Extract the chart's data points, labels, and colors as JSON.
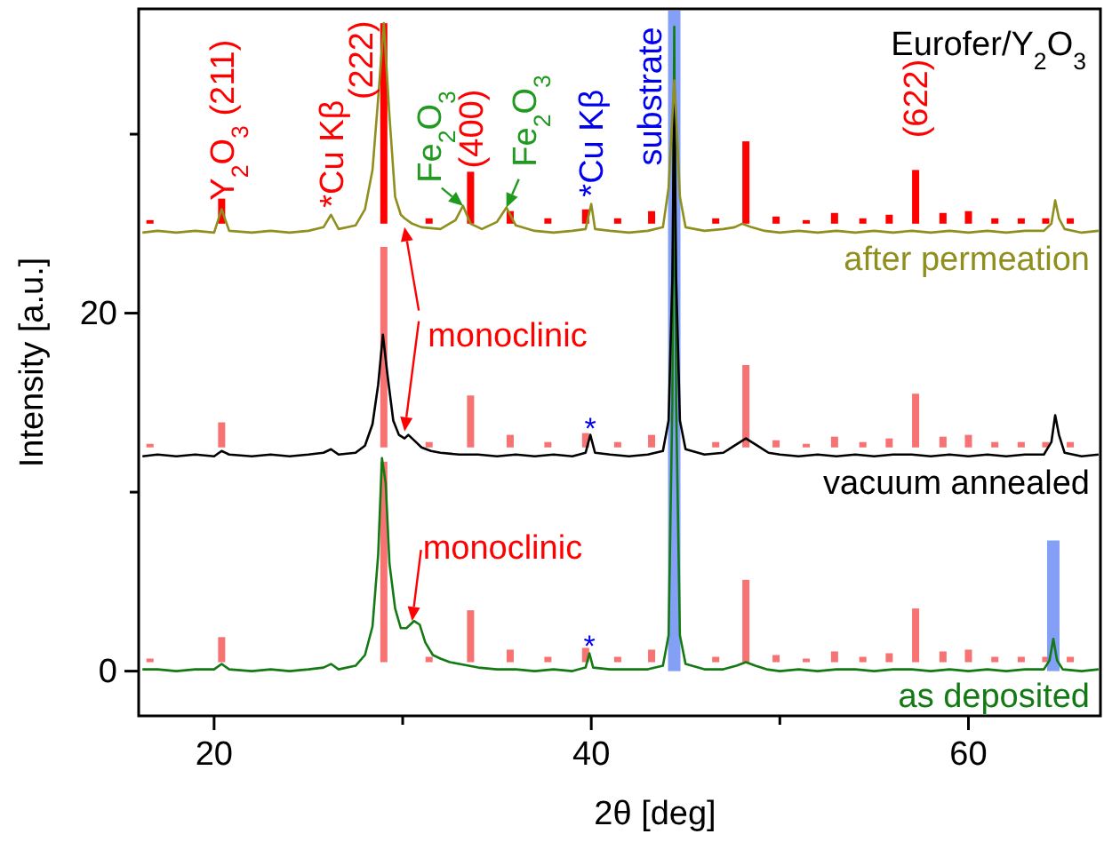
{
  "chart_data": {
    "type": "line",
    "xlabel": "2θ [deg]",
    "ylabel": "Intensity [a.u.]",
    "xlim": [
      16,
      67
    ],
    "xticks": [
      20,
      {
        "value": 30,
        "label": null
      },
      40,
      {
        "value": 50,
        "label": null
      },
      60
    ],
    "ylim": [
      -2.5,
      37
    ],
    "yticks": [
      0,
      {
        "value": 10,
        "label": null
      },
      20,
      {
        "value": 30,
        "label": null
      }
    ],
    "grid": false,
    "legend": false,
    "annotations": [
      "Eurofer/Y$_{2}$O$_{3}$",
      {
        "text": "Y$_{2}$O$_{3}$ (211)",
        "x": 20.4,
        "y": 25.8
      },
      {
        "text": "*Cu Kβ",
        "x": 26.2,
        "y": 25.5
      },
      {
        "text": "(222)",
        "x": 29.0,
        "y": 36.2
      },
      {
        "text": "Fe$_{2}$O$_{3}$",
        "x": 33.2,
        "y": 26.0
      },
      {
        "text": "(400)",
        "x": 33.6,
        "y": 27.9
      },
      {
        "text": "Fe$_{2}$O$_{3}$",
        "x": 35.5,
        "y": 25.9
      },
      {
        "text": "*Cu Kβ",
        "x": 40.0,
        "y": 26.1
      },
      {
        "text": "substrate",
        "x": 44.4,
        "y": 33.0
      },
      {
        "text": "(622)",
        "x": 57.2,
        "y": 28.0
      },
      {
        "text": "monoclinic",
        "x": 30.1,
        "y": 13.0
      },
      {
        "text": "monoclinic",
        "x": 30.5,
        "y": 2.8
      },
      {
        "text": "*",
        "x": 39.95,
        "y": 13.2
      },
      {
        "text": "*",
        "x": 39.9,
        "y": 1.0
      }
    ],
    "series": [
      {
        "type": "bar",
        "color": "#f77272",
        "base": [
          0.5,
          0.5,
          0.5,
          0.5,
          0.5,
          0.5,
          0.5,
          0.5,
          0.5,
          0.5,
          0.5,
          0.5,
          0.5,
          0.5,
          0.5,
          0.5,
          0.5,
          0.5,
          0.5,
          0.5,
          0.5,
          0.5,
          0.5,
          0.5
        ],
        "x": [
          16.6,
          20.4,
          29.0,
          31.4,
          33.6,
          35.7,
          37.7,
          39.7,
          41.4,
          43.2,
          46.6,
          48.2,
          49.8,
          51.4,
          52.9,
          54.4,
          55.8,
          57.2,
          58.65,
          60.0,
          61.4,
          62.8,
          64.1,
          65.4
        ],
        "values": [
          0.2,
          1.4,
          11.2,
          0.3,
          2.9,
          0.7,
          0.3,
          0.8,
          0.3,
          0.7,
          0.3,
          4.6,
          0.4,
          0.2,
          0.6,
          0.3,
          0.5,
          3.0,
          0.6,
          0.7,
          0.3,
          0.3,
          0.3,
          0.3
        ]
      },
      {
        "type": "bar",
        "color": "#f77272",
        "base": [
          12.5,
          12.5,
          12.5,
          12.5,
          12.5,
          12.5,
          12.5,
          12.5,
          12.5,
          12.5,
          12.5,
          12.5,
          12.5,
          12.5,
          12.5,
          12.5,
          12.5,
          12.5,
          12.5,
          12.5,
          12.5,
          12.5,
          12.5,
          12.5
        ],
        "x": [
          16.6,
          20.4,
          29.0,
          31.4,
          33.6,
          35.7,
          37.7,
          39.7,
          41.4,
          43.2,
          46.6,
          48.2,
          49.8,
          51.4,
          52.9,
          54.4,
          55.8,
          57.2,
          58.65,
          60.0,
          61.4,
          62.8,
          64.1,
          65.4
        ],
        "values": [
          0.2,
          1.4,
          11.2,
          0.3,
          2.9,
          0.7,
          0.3,
          0.8,
          0.3,
          0.7,
          0.3,
          4.6,
          0.4,
          0.2,
          0.6,
          0.3,
          0.5,
          3.0,
          0.6,
          0.7,
          0.3,
          0.3,
          0.3,
          0.3
        ]
      },
      {
        "type": "bar",
        "color": "#ff0000",
        "base": [
          25.0,
          25.0,
          25.0,
          25.0,
          25.0,
          25.0,
          25.0,
          25.0,
          25.0,
          25.0,
          25.0,
          25.0,
          25.0,
          25.0,
          25.0,
          25.0,
          25.0,
          25.0,
          25.0,
          25.0,
          25.0,
          25.0,
          25.0,
          25.0
        ],
        "x": [
          16.6,
          20.4,
          29.0,
          31.4,
          33.6,
          35.7,
          37.7,
          39.7,
          41.4,
          43.2,
          46.6,
          48.2,
          49.8,
          51.4,
          52.9,
          54.4,
          55.8,
          57.2,
          58.65,
          60.0,
          61.4,
          62.8,
          64.1,
          65.4
        ],
        "values": [
          0.2,
          1.4,
          11.2,
          0.3,
          2.9,
          0.7,
          0.3,
          0.8,
          0.3,
          0.7,
          0.3,
          4.6,
          0.4,
          0.2,
          0.6,
          0.3,
          0.5,
          3.0,
          0.6,
          0.7,
          0.3,
          0.3,
          0.3,
          0.3
        ]
      },
      {
        "type": "bar",
        "color": "#6f8ef5",
        "base": [
          0,
          0
        ],
        "x": [
          44.4,
          64.5
        ],
        "values": [
          36.9,
          7.3
        ]
      },
      {
        "name": "as deposited",
        "color": "#137a13",
        "x": [
          16.2,
          17,
          18,
          19,
          20,
          20.4,
          20.8,
          22,
          23,
          24,
          25,
          25.8,
          26.2,
          26.6,
          27.5,
          28.0,
          28.4,
          28.7,
          28.9,
          29.1,
          29.3,
          29.6,
          29.9,
          30.2,
          30.6,
          30.9,
          31.2,
          31.6,
          32.0,
          32.5,
          33.0,
          33.5,
          34,
          35,
          36,
          37,
          38,
          39,
          39.7,
          39.9,
          40.1,
          41,
          42,
          43,
          43.8,
          44.1,
          44.3,
          44.4,
          44.5,
          44.7,
          45.0,
          46,
          47,
          47.7,
          48.2,
          48.7,
          49.3,
          50,
          51,
          52,
          53,
          54,
          55,
          56,
          57,
          58,
          59,
          60,
          61,
          62,
          63,
          64,
          64.3,
          64.5,
          64.7,
          65,
          66,
          66.9
        ],
        "values": [
          0.1,
          0.1,
          0.0,
          0.1,
          0.1,
          0.4,
          0.1,
          0.0,
          0.1,
          0.0,
          0.1,
          0.2,
          0.4,
          0.1,
          0.3,
          0.9,
          2.5,
          6.5,
          11.9,
          10.5,
          6.0,
          3.5,
          2.4,
          2.4,
          2.8,
          2.6,
          1.6,
          0.9,
          0.7,
          0.5,
          0.4,
          0.3,
          0.2,
          0.1,
          0.1,
          0.0,
          0.1,
          0.0,
          0.2,
          1.0,
          0.2,
          0.1,
          0.1,
          0.1,
          0.3,
          2.0,
          15.0,
          36.0,
          15.0,
          2.0,
          0.4,
          0.1,
          0.1,
          0.3,
          0.5,
          0.3,
          0.1,
          0.0,
          0.1,
          0.0,
          0.1,
          0.1,
          0.0,
          0.1,
          0.1,
          0.0,
          0.1,
          0.0,
          0.1,
          0.0,
          0.1,
          0.1,
          0.6,
          1.8,
          0.6,
          0.1,
          0.0,
          0.1
        ]
      },
      {
        "name": "vacuum annealed",
        "color": "#000000",
        "x": [
          16.2,
          17,
          18,
          19,
          20,
          20.4,
          20.8,
          22,
          23,
          24,
          25,
          25.8,
          26.2,
          26.6,
          27.5,
          28.0,
          28.4,
          28.7,
          28.95,
          29.2,
          29.5,
          29.8,
          30.1,
          30.3,
          30.6,
          31.0,
          31.5,
          32,
          33,
          34,
          35,
          36,
          37,
          38,
          39,
          39.7,
          39.95,
          40.2,
          41,
          42,
          43,
          43.8,
          44.1,
          44.3,
          44.4,
          44.5,
          44.7,
          45.0,
          46,
          47,
          47.6,
          48.2,
          48.8,
          49.4,
          50,
          51,
          52,
          53,
          54,
          55,
          56,
          57,
          58,
          59,
          60,
          61,
          62,
          63,
          64,
          64.4,
          64.6,
          64.8,
          65.1,
          66,
          66.9
        ],
        "values": [
          12.0,
          12.1,
          12.0,
          12.1,
          12.0,
          12.3,
          12.1,
          12.0,
          12.1,
          12.0,
          12.1,
          12.2,
          12.4,
          12.1,
          12.2,
          12.6,
          13.8,
          16.0,
          18.8,
          16.5,
          14.0,
          13.2,
          13.0,
          13.2,
          12.9,
          12.5,
          12.3,
          12.2,
          12.1,
          12.1,
          12.0,
          12.1,
          12.0,
          12.1,
          12.0,
          12.2,
          13.2,
          12.2,
          12.1,
          12.0,
          12.1,
          12.3,
          14.0,
          22.0,
          32.8,
          22.0,
          14.0,
          12.4,
          12.1,
          12.2,
          12.6,
          13.0,
          12.6,
          12.2,
          12.1,
          12.0,
          12.1,
          12.0,
          12.1,
          12.0,
          12.1,
          12.1,
          12.0,
          12.1,
          12.0,
          12.1,
          12.0,
          12.1,
          12.1,
          12.8,
          14.3,
          13.2,
          12.2,
          12.0,
          12.1
        ]
      },
      {
        "name": "after permeation",
        "color": "#8f8f1e",
        "x": [
          16.2,
          17,
          18,
          19,
          20,
          20.4,
          20.8,
          22,
          23,
          24,
          25,
          25.8,
          26.2,
          26.6,
          27.5,
          28.0,
          28.4,
          28.7,
          29.0,
          29.3,
          29.6,
          29.9,
          30.1,
          30.5,
          31,
          32,
          32.8,
          33.2,
          33.6,
          34.2,
          35.0,
          35.5,
          36.0,
          37,
          38,
          39,
          39.7,
          40.0,
          40.2,
          41,
          42,
          43,
          43.8,
          44.1,
          44.3,
          44.4,
          44.5,
          44.7,
          45.0,
          46,
          47,
          47.6,
          48.0,
          48.5,
          49.2,
          50,
          51,
          52,
          53,
          54,
          55,
          56,
          57,
          58,
          59,
          60,
          61,
          62,
          63,
          64,
          64.4,
          64.6,
          64.8,
          65.1,
          66,
          66.9
        ],
        "values": [
          24.5,
          24.6,
          24.5,
          24.6,
          24.5,
          25.8,
          24.6,
          24.5,
          24.6,
          24.5,
          24.6,
          24.8,
          25.5,
          24.7,
          24.9,
          25.8,
          28.0,
          32.0,
          36.2,
          31.0,
          26.5,
          25.5,
          25.3,
          25.0,
          24.8,
          24.7,
          25.2,
          26.0,
          25.0,
          24.7,
          25.1,
          25.9,
          24.9,
          24.6,
          24.5,
          24.6,
          24.7,
          26.1,
          24.7,
          24.6,
          24.5,
          24.6,
          24.8,
          27.0,
          31.0,
          33.0,
          31.0,
          26.5,
          24.8,
          24.6,
          24.7,
          24.8,
          25.0,
          24.8,
          24.6,
          24.5,
          24.6,
          24.5,
          24.6,
          24.5,
          24.6,
          24.5,
          24.6,
          24.5,
          24.6,
          24.5,
          24.6,
          24.5,
          24.6,
          24.6,
          25.0,
          26.3,
          25.3,
          24.7,
          24.5,
          24.6
        ]
      }
    ]
  }
}
